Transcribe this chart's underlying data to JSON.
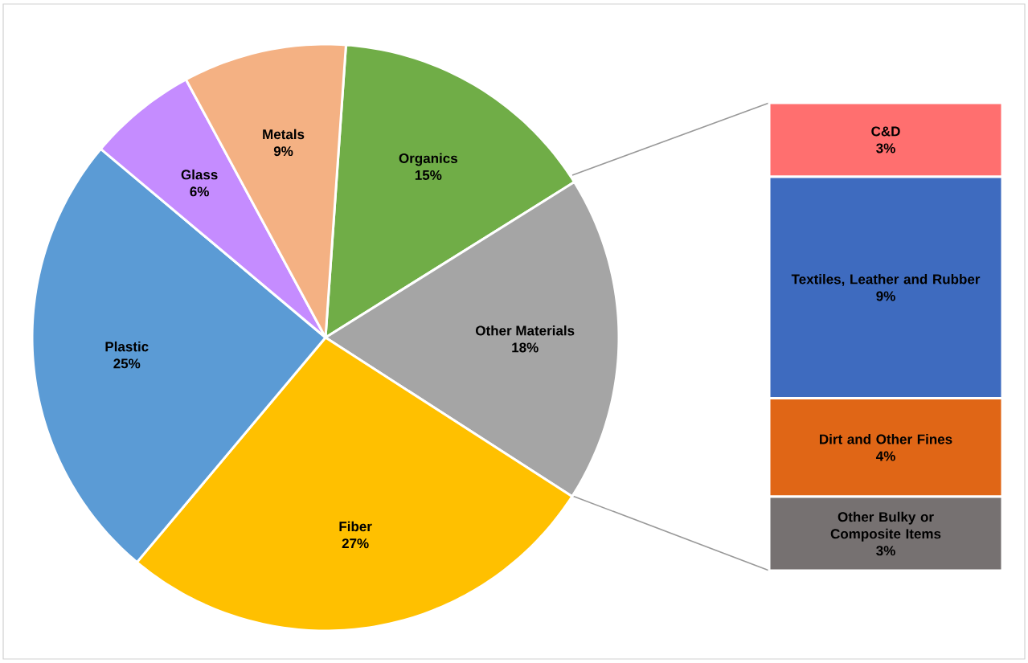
{
  "chart_data": [
    {
      "type": "pie",
      "categories": [
        "Organics",
        "Other Materials",
        "Fiber",
        "Plastic",
        "Glass",
        "Metals"
      ],
      "values": [
        15,
        18,
        27,
        25,
        6,
        9
      ],
      "value_labels": [
        "15%",
        "18%",
        "27%",
        "25%",
        "6%",
        "9%"
      ],
      "colors": [
        "#70ad47",
        "#a5a5a5",
        "#ffc000",
        "#5b9bd5",
        "#c58cff",
        "#f4b183"
      ]
    },
    {
      "type": "bar",
      "stacked": true,
      "categories": [
        null
      ],
      "series": [
        {
          "name": "Other Bulky or Composite Items",
          "color": "#767171",
          "values": [
            3
          ],
          "value_labels": [
            "3%"
          ]
        },
        {
          "name": "Dirt and Other Fines",
          "color": "#e06616",
          "values": [
            4
          ],
          "value_labels": [
            "4%"
          ]
        },
        {
          "name": "Textiles, Leather and Rubber",
          "color": "#3e6bbf",
          "values": [
            9
          ],
          "value_labels": [
            "9%"
          ]
        },
        {
          "name": "C&D",
          "color": "#ff6f6f",
          "values": [
            3
          ],
          "value_labels": [
            "3%"
          ]
        }
      ]
    }
  ]
}
